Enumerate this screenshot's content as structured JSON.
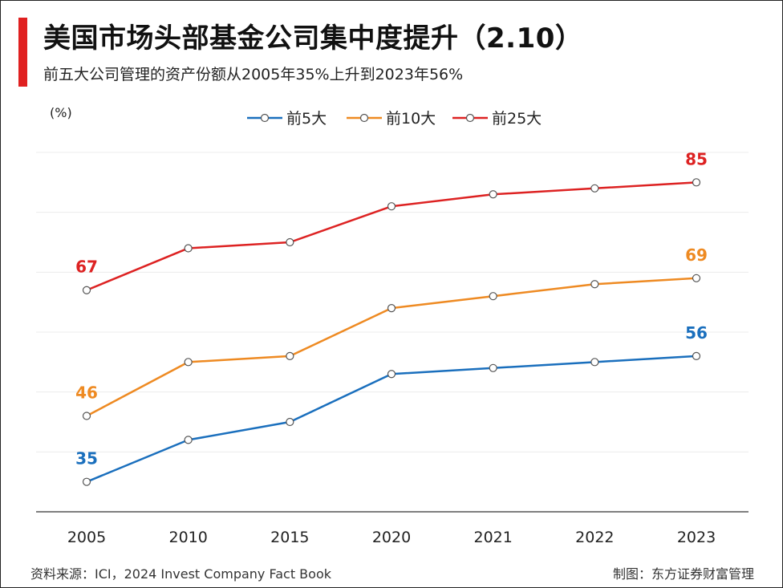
{
  "header": {
    "title": "美国市场头部基金公司集中度提升（2.10）",
    "subtitle": "前五大公司管理的资产份额从2005年35%上升到2023年56%"
  },
  "footer": {
    "source": "资料来源：ICI，2024 Invest Company Fact Book",
    "credit": "制图：东方证券财富管理"
  },
  "colors": {
    "accent": "#e02020"
  },
  "chart_data": {
    "type": "line",
    "ylabel": "(%)",
    "categories": [
      "2005",
      "2010",
      "2015",
      "2020",
      "2021",
      "2022",
      "2023"
    ],
    "ylim": [
      30,
      90
    ],
    "grid": true,
    "legend_position": "top-center",
    "series": [
      {
        "name": "前5大",
        "color": "#1a6fbd",
        "values": [
          35,
          42,
          45,
          53,
          54,
          55,
          56
        ]
      },
      {
        "name": "前10大",
        "color": "#ee8a22",
        "values": [
          46,
          55,
          56,
          64,
          66,
          68,
          69
        ]
      },
      {
        "name": "前25大",
        "color": "#dd2222",
        "values": [
          67,
          74,
          75,
          81,
          83,
          84,
          85
        ]
      }
    ],
    "data_labels": [
      {
        "series": 0,
        "index": 0,
        "text": "35"
      },
      {
        "series": 0,
        "index": 6,
        "text": "56"
      },
      {
        "series": 1,
        "index": 0,
        "text": "46"
      },
      {
        "series": 1,
        "index": 6,
        "text": "69"
      },
      {
        "series": 2,
        "index": 0,
        "text": "67"
      },
      {
        "series": 2,
        "index": 6,
        "text": "85"
      }
    ]
  }
}
